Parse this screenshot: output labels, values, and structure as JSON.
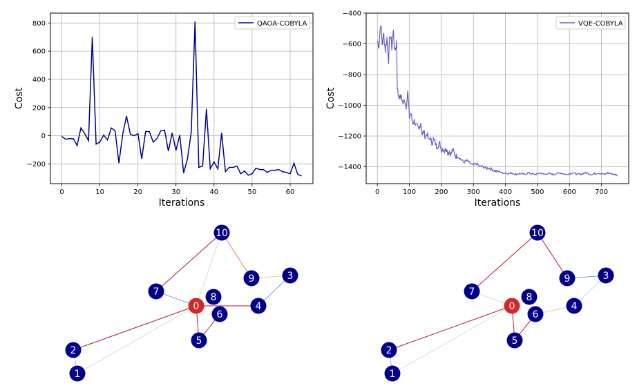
{
  "chart_data": [
    {
      "type": "line",
      "xlabel": "Iterations",
      "ylabel": "Cost",
      "xlim": [
        -3,
        66
      ],
      "ylim": [
        -340,
        870
      ],
      "xticks": [
        0,
        10,
        20,
        30,
        40,
        50,
        60
      ],
      "yticks": [
        -200,
        0,
        200,
        400,
        600,
        800
      ],
      "grid": true,
      "legend": "upper-right",
      "series": [
        {
          "name": "QAOA-COBYLA",
          "color": "#00008b",
          "x": [
            0,
            1,
            2,
            3,
            4,
            5,
            6,
            7,
            8,
            9,
            10,
            11,
            12,
            13,
            14,
            15,
            16,
            17,
            18,
            19,
            20,
            21,
            22,
            23,
            24,
            25,
            26,
            27,
            28,
            29,
            30,
            31,
            32,
            33,
            34,
            35,
            36,
            37,
            38,
            39,
            40,
            41,
            42,
            43,
            44,
            45,
            46,
            47,
            48,
            49,
            50,
            51,
            52,
            53,
            54,
            55,
            56,
            57,
            58,
            59,
            60,
            61,
            62,
            63
          ],
          "values": [
            -5,
            -25,
            -20,
            -20,
            -70,
            55,
            15,
            -35,
            700,
            -60,
            -45,
            5,
            -30,
            55,
            35,
            -195,
            10,
            140,
            10,
            0,
            15,
            -165,
            30,
            30,
            -45,
            -20,
            35,
            40,
            -110,
            20,
            -105,
            5,
            -265,
            -165,
            25,
            810,
            -225,
            -215,
            190,
            -235,
            -185,
            -235,
            20,
            -255,
            -225,
            -225,
            -215,
            -270,
            -250,
            -280,
            -270,
            -230,
            -240,
            -240,
            -260,
            -245,
            -245,
            -240,
            -255,
            -260,
            -270,
            -195,
            -275,
            -285
          ]
        }
      ]
    },
    {
      "type": "line",
      "xlabel": "Iterations",
      "ylabel": "Cost",
      "xlim": [
        -35,
        785
      ],
      "ylim": [
        -1510,
        -400
      ],
      "xticks": [
        0,
        100,
        200,
        300,
        400,
        500,
        600,
        700
      ],
      "yticks": [
        -1400,
        -1200,
        -1000,
        -800,
        -600,
        -400
      ],
      "grid": true,
      "legend": "upper-right",
      "series": [
        {
          "name": "VQE-COBYLA",
          "color": "#6a5acd",
          "x": [
            0,
            5,
            10,
            15,
            20,
            25,
            30,
            35,
            40,
            45,
            50,
            55,
            60,
            62,
            65,
            70,
            75,
            80,
            85,
            90,
            95,
            100,
            105,
            110,
            115,
            120,
            125,
            130,
            135,
            140,
            145,
            150,
            155,
            160,
            165,
            170,
            175,
            180,
            185,
            190,
            195,
            200,
            205,
            210,
            215,
            220,
            225,
            230,
            235,
            240,
            245,
            250,
            260,
            270,
            280,
            290,
            300,
            310,
            320,
            330,
            340,
            350,
            360,
            370,
            380,
            390,
            400,
            410,
            420,
            430,
            440,
            450,
            460,
            470,
            480,
            490,
            500,
            510,
            520,
            530,
            540,
            550,
            560,
            570,
            580,
            590,
            600,
            610,
            620,
            630,
            640,
            650,
            660,
            670,
            680,
            690,
            700,
            710,
            720,
            730,
            740,
            750
          ],
          "values": [
            -580,
            -610,
            -460,
            -600,
            -540,
            -640,
            -560,
            -700,
            -530,
            -620,
            -520,
            -660,
            -580,
            -880,
            -930,
            -950,
            -940,
            -990,
            -960,
            -1010,
            -910,
            -1080,
            -1050,
            -1120,
            -1100,
            -1130,
            -1140,
            -1160,
            -1110,
            -1190,
            -1170,
            -1210,
            -1180,
            -1230,
            -1210,
            -1250,
            -1220,
            -1240,
            -1270,
            -1260,
            -1250,
            -1290,
            -1280,
            -1300,
            -1270,
            -1310,
            -1300,
            -1320,
            -1290,
            -1310,
            -1330,
            -1330,
            -1350,
            -1370,
            -1360,
            -1380,
            -1390,
            -1380,
            -1400,
            -1400,
            -1410,
            -1410,
            -1420,
            -1430,
            -1430,
            -1440,
            -1440,
            -1445,
            -1440,
            -1450,
            -1445,
            -1445,
            -1450,
            -1440,
            -1445,
            -1450,
            -1445,
            -1440,
            -1450,
            -1445,
            -1445,
            -1450,
            -1445,
            -1440,
            -1445,
            -1450,
            -1445,
            -1440,
            -1445,
            -1450,
            -1445,
            -1440,
            -1445,
            -1450,
            -1445,
            -1440,
            -1445,
            -1450,
            -1440,
            -1445,
            -1450,
            -1455
          ]
        }
      ]
    }
  ],
  "graphs": [
    {
      "name": "graph-qaoa",
      "nodes": [
        {
          "id": "0",
          "color": "#d62728"
        },
        {
          "id": "1",
          "color": "#00008b"
        },
        {
          "id": "2",
          "color": "#00008b"
        },
        {
          "id": "3",
          "color": "#00008b"
        },
        {
          "id": "4",
          "color": "#00008b"
        },
        {
          "id": "5",
          "color": "#00008b"
        },
        {
          "id": "6",
          "color": "#00008b"
        },
        {
          "id": "7",
          "color": "#00008b"
        },
        {
          "id": "8",
          "color": "#00008b"
        },
        {
          "id": "9",
          "color": "#00008b"
        },
        {
          "id": "10",
          "color": "#00008b"
        }
      ],
      "edges": [
        {
          "source": "0",
          "target": "2",
          "color": "#b2182b"
        },
        {
          "source": "0",
          "target": "5",
          "color": "#b2182b"
        },
        {
          "source": "0",
          "target": "4",
          "color": "#b2182b"
        },
        {
          "source": "0",
          "target": "7",
          "color": "#7b9fd6"
        },
        {
          "source": "0",
          "target": "1",
          "color": "#d9d9d9"
        },
        {
          "source": "0",
          "target": "10",
          "color": "#d9d9d9"
        },
        {
          "source": "5",
          "target": "6",
          "color": "#b2182b"
        },
        {
          "source": "7",
          "target": "10",
          "color": "#b2182b"
        },
        {
          "source": "10",
          "target": "9",
          "color": "#e08060"
        },
        {
          "source": "9",
          "target": "3",
          "color": "#f4c7a0"
        },
        {
          "source": "3",
          "target": "4",
          "color": "#7b9fd6"
        },
        {
          "source": "1",
          "target": "2",
          "color": "#9ab7e8"
        }
      ]
    },
    {
      "name": "graph-vqe",
      "nodes": [
        {
          "id": "0",
          "color": "#d62728"
        },
        {
          "id": "1",
          "color": "#00008b"
        },
        {
          "id": "2",
          "color": "#00008b"
        },
        {
          "id": "3",
          "color": "#00008b"
        },
        {
          "id": "4",
          "color": "#00008b"
        },
        {
          "id": "5",
          "color": "#00008b"
        },
        {
          "id": "6",
          "color": "#00008b"
        },
        {
          "id": "7",
          "color": "#00008b"
        },
        {
          "id": "8",
          "color": "#00008b"
        },
        {
          "id": "9",
          "color": "#00008b"
        },
        {
          "id": "10",
          "color": "#00008b"
        }
      ],
      "edges": [
        {
          "source": "0",
          "target": "2",
          "color": "#b2182b"
        },
        {
          "source": "0",
          "target": "5",
          "color": "#b2182b"
        },
        {
          "source": "0",
          "target": "7",
          "color": "#d9d9d9"
        },
        {
          "source": "0",
          "target": "1",
          "color": "#d9d9d9"
        },
        {
          "source": "5",
          "target": "6",
          "color": "#b2182b"
        },
        {
          "source": "6",
          "target": "4",
          "color": "#f4c7a0"
        },
        {
          "source": "7",
          "target": "10",
          "color": "#b2182b"
        },
        {
          "source": "10",
          "target": "9",
          "color": "#b2182b"
        },
        {
          "source": "9",
          "target": "3",
          "color": "#7b9fd6"
        },
        {
          "source": "3",
          "target": "4",
          "color": "#c6d7f2"
        },
        {
          "source": "1",
          "target": "2",
          "color": "#9ab7e8"
        }
      ]
    }
  ]
}
